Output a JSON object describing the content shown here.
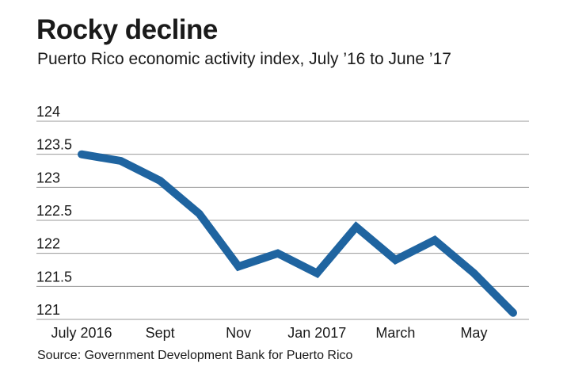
{
  "chart_data": {
    "type": "line",
    "title": "Rocky decline",
    "subtitle": "Puerto Rico economic activity index, July ’16 to June ’17",
    "source": "Source: Government Development Bank for Puerto Rico",
    "xlabel": "",
    "ylabel": "",
    "ylim": [
      121,
      124
    ],
    "y_ticks": [
      "124",
      "123.5",
      "123",
      "122.5",
      "122",
      "121.5",
      "121"
    ],
    "x_tick_labels": [
      "July 2016",
      "Sept",
      "Nov",
      "Jan 2017",
      "March",
      "May"
    ],
    "categories": [
      "Jul 2016",
      "Aug 2016",
      "Sep 2016",
      "Oct 2016",
      "Nov 2016",
      "Dec 2016",
      "Jan 2017",
      "Feb 2017",
      "Mar 2017",
      "Apr 2017",
      "May 2017",
      "Jun 2017"
    ],
    "series": [
      {
        "values": [
          123.5,
          123.4,
          123.1,
          122.6,
          121.8,
          122.0,
          121.7,
          122.4,
          121.9,
          122.2,
          121.7,
          121.1
        ],
        "color": "#1f64a0"
      }
    ],
    "grid": true,
    "legend": "none"
  }
}
